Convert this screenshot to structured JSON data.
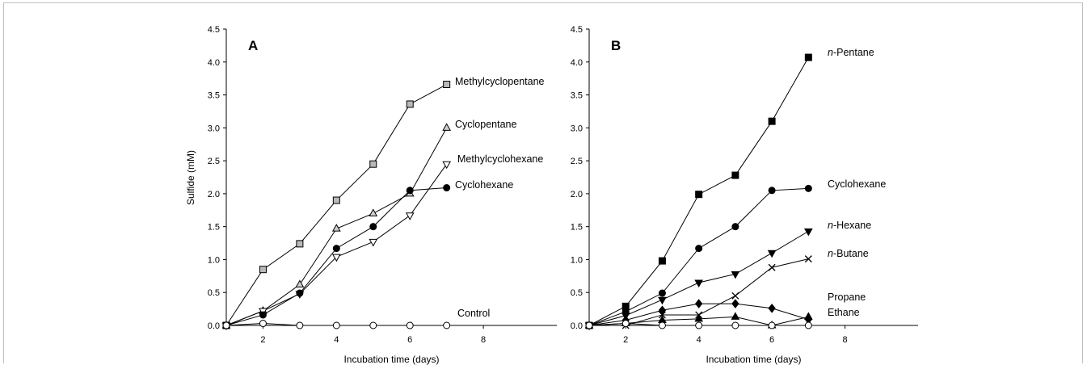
{
  "chart_data": [
    {
      "type": "line",
      "panel_label": "A",
      "xlabel": "Incubation time (days)",
      "ylabel": "Sulfide (mM)",
      "xlim": [
        1,
        10
      ],
      "ylim": [
        0,
        4.5
      ],
      "x_ticks": [
        2,
        4,
        6,
        8
      ],
      "y_ticks": [
        "0.0",
        "0.5",
        "1.0",
        "1.5",
        "2.0",
        "2.5",
        "3.0",
        "3.5",
        "4.0",
        "4.5"
      ],
      "series": [
        {
          "name": "Methylcyclopentane",
          "italic_prefix": "",
          "marker": "square",
          "fill": "#b9b9b9",
          "x": [
            1,
            2,
            3,
            4,
            5,
            6,
            7
          ],
          "values": [
            0.0,
            0.85,
            1.24,
            1.9,
            2.45,
            3.36,
            3.66
          ]
        },
        {
          "name": "Cyclopentane",
          "italic_prefix": "",
          "marker": "triangle-up",
          "fill": "#cfcfcf",
          "x": [
            1,
            2,
            3,
            4,
            5,
            6,
            7
          ],
          "values": [
            0.0,
            0.22,
            0.62,
            1.47,
            1.7,
            2.0,
            3.0
          ]
        },
        {
          "name": "Methylcyclohexane",
          "italic_prefix": "",
          "marker": "triangle-down",
          "fill": "#ffffff",
          "x": [
            1,
            2,
            3,
            4,
            5,
            6,
            7
          ],
          "values": [
            0.0,
            0.22,
            0.48,
            1.04,
            1.27,
            1.67,
            2.45
          ]
        },
        {
          "name": "Cyclohexane",
          "italic_prefix": "",
          "marker": "circle",
          "fill": "#000000",
          "x": [
            1,
            2,
            3,
            4,
            5,
            6,
            7
          ],
          "values": [
            0.0,
            0.16,
            0.49,
            1.17,
            1.5,
            2.05,
            2.09
          ]
        },
        {
          "name": "Control",
          "italic_prefix": "",
          "marker": "circle",
          "fill": "#ffffff",
          "x": [
            1,
            2,
            3,
            4,
            5,
            6,
            7
          ],
          "values": [
            0.0,
            0.03,
            0.0,
            0.0,
            0.0,
            0.0,
            0.0
          ]
        }
      ]
    },
    {
      "type": "line",
      "panel_label": "B",
      "xlabel": "Incubation time (days)",
      "ylabel": "",
      "xlim": [
        1,
        10
      ],
      "ylim": [
        0,
        4.5
      ],
      "x_ticks": [
        2,
        4,
        6,
        8
      ],
      "y_ticks": [
        "0.0",
        "0.5",
        "1.0",
        "1.5",
        "2.0",
        "2.5",
        "3.0",
        "3.5",
        "4.0",
        "4.5"
      ],
      "series": [
        {
          "name": "-Pentane",
          "italic_prefix": "n",
          "marker": "square",
          "fill": "#000000",
          "x": [
            1,
            2,
            3,
            4,
            5,
            6,
            7
          ],
          "values": [
            0.0,
            0.29,
            0.98,
            1.99,
            2.28,
            3.1,
            4.07
          ]
        },
        {
          "name": "Cyclohexane",
          "italic_prefix": "",
          "marker": "circle",
          "fill": "#000000",
          "x": [
            1,
            2,
            3,
            4,
            5,
            6,
            7
          ],
          "values": [
            0.0,
            0.21,
            0.49,
            1.17,
            1.5,
            2.05,
            2.08
          ]
        },
        {
          "name": "-Hexane",
          "italic_prefix": "n",
          "marker": "triangle-down",
          "fill": "#000000",
          "x": [
            1,
            2,
            3,
            4,
            5,
            6,
            7
          ],
          "values": [
            0.0,
            0.15,
            0.39,
            0.65,
            0.78,
            1.1,
            1.43
          ]
        },
        {
          "name": "-Butane",
          "italic_prefix": "n",
          "marker": "cross",
          "fill": "#000000",
          "x": [
            1,
            2,
            3,
            4,
            5,
            6,
            7
          ],
          "values": [
            0.0,
            0.0,
            0.16,
            0.16,
            0.45,
            0.88,
            1.01
          ]
        },
        {
          "name": "Propane",
          "italic_prefix": "",
          "marker": "diamond",
          "fill": "#000000",
          "x": [
            1,
            2,
            3,
            4,
            5,
            6,
            7
          ],
          "values": [
            0.0,
            0.08,
            0.23,
            0.33,
            0.33,
            0.26,
            0.09
          ]
        },
        {
          "name": "Ethane",
          "italic_prefix": "",
          "marker": "triangle-up",
          "fill": "#000000",
          "x": [
            1,
            2,
            3,
            4,
            5,
            6,
            7
          ],
          "values": [
            0.0,
            0.03,
            0.08,
            0.1,
            0.13,
            0.0,
            0.13
          ]
        },
        {
          "name": "",
          "italic_prefix": "",
          "marker": "circle",
          "fill": "#ffffff",
          "x": [
            1,
            2,
            3,
            4,
            5,
            6,
            7
          ],
          "values": [
            0.0,
            0.03,
            0.0,
            0.0,
            0.0,
            0.0,
            0.0
          ]
        }
      ]
    }
  ]
}
